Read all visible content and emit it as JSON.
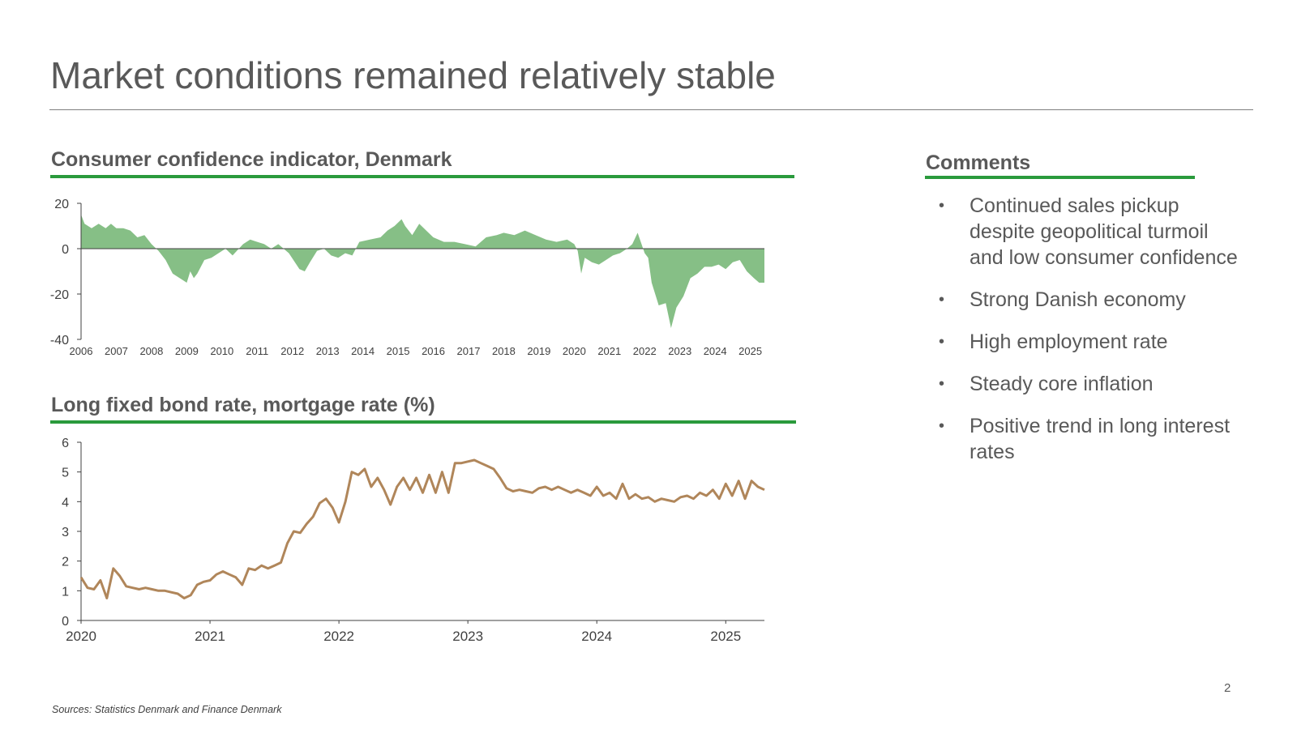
{
  "page": {
    "title": "Market conditions remained relatively stable",
    "page_number": "2",
    "source": "Sources: Statistics Denmark and Finance Denmark"
  },
  "comments": {
    "title": "Comments",
    "bullet_glyph": "•",
    "items": [
      "Continued sales pickup despite geopolitical turmoil and low consumer confidence",
      "Strong Danish economy",
      "High employment rate",
      "Steady core inflation",
      "Positive trend in long interest rates"
    ]
  },
  "colors": {
    "accent_green": "#2a9a3c",
    "area_green": "#86bf86",
    "line_brown": "#b0865a",
    "text_gray": "#595959"
  },
  "chart_data": [
    {
      "type": "area",
      "title": "Consumer confidence indicator, Denmark",
      "xlabel": "",
      "ylabel": "",
      "xlim": [
        2006,
        2025.4
      ],
      "ylim": [
        -40,
        20
      ],
      "y_ticks": [
        20,
        0,
        -20,
        -40
      ],
      "x_ticks": [
        "2006",
        "2007",
        "2008",
        "2009",
        "2010",
        "2011",
        "2012",
        "2013",
        "2014",
        "2015",
        "2016",
        "2017",
        "2018",
        "2019",
        "2020",
        "2021",
        "2022",
        "2023",
        "2024",
        "2025"
      ],
      "grid": false,
      "series": [
        {
          "x": [
            2006.0,
            2006.1,
            2006.3,
            2006.5,
            2006.7,
            2006.85,
            2007.0,
            2007.2,
            2007.4,
            2007.6,
            2007.8,
            2008.0,
            2008.2,
            2008.4,
            2008.6,
            2008.8,
            2009.0,
            2009.1,
            2009.2,
            2009.3,
            2009.5,
            2009.7,
            2009.9,
            2010.1,
            2010.3,
            2010.6,
            2010.8,
            2011.0,
            2011.2,
            2011.4,
            2011.6,
            2011.9,
            2012.2,
            2012.35,
            2012.5,
            2012.7,
            2012.9,
            2013.1,
            2013.3,
            2013.5,
            2013.7,
            2013.9,
            2014.2,
            2014.5,
            2014.7,
            2014.9,
            2015.1,
            2015.2,
            2015.4,
            2015.6,
            2015.8,
            2016.0,
            2016.3,
            2016.6,
            2016.9,
            2017.2,
            2017.5,
            2017.8,
            2018.0,
            2018.3,
            2018.6,
            2018.9,
            2019.2,
            2019.5,
            2019.8,
            2020.0,
            2020.1,
            2020.2,
            2020.3,
            2020.5,
            2020.7,
            2020.9,
            2021.1,
            2021.3,
            2021.5,
            2021.65,
            2021.8,
            2022.0,
            2022.1,
            2022.2,
            2022.4,
            2022.6,
            2022.75,
            2022.9,
            2023.1,
            2023.3,
            2023.5,
            2023.7,
            2023.9,
            2024.1,
            2024.3,
            2024.5,
            2024.7,
            2024.9,
            2025.1,
            2025.25,
            2025.4
          ],
          "y": [
            15,
            11,
            9,
            11,
            9,
            11,
            9,
            9,
            8,
            5,
            6,
            2,
            -1,
            -5,
            -11,
            -13,
            -15,
            -10,
            -13,
            -11,
            -5,
            -4,
            -2,
            0,
            -3,
            2,
            4,
            3,
            2,
            0,
            2,
            -2,
            -9,
            -10,
            -6,
            -1,
            0,
            -3,
            -4,
            -2,
            -3,
            3,
            4,
            5,
            8,
            10,
            13,
            10,
            6,
            11,
            8,
            5,
            3,
            3,
            2,
            1,
            5,
            6,
            7,
            6,
            8,
            6,
            4,
            3,
            4,
            2,
            -1,
            -11,
            -4,
            -6,
            -7,
            -5,
            -3,
            -2,
            0,
            2,
            7,
            -2,
            -4,
            -15,
            -25,
            -24,
            -35,
            -26,
            -21,
            -13,
            -11,
            -8,
            -8,
            -7,
            -9,
            -6,
            -5,
            -10,
            -13,
            -15,
            -15
          ]
        }
      ]
    },
    {
      "type": "line",
      "title": "Long fixed bond rate, mortgage rate (%)",
      "xlabel": "",
      "ylabel": "",
      "xlim": [
        2020,
        2025.3
      ],
      "ylim": [
        0,
        6
      ],
      "y_ticks": [
        6,
        5,
        4,
        3,
        2,
        1,
        0
      ],
      "x_ticks": [
        "2020",
        "2021",
        "2022",
        "2023",
        "2024",
        "2025"
      ],
      "grid": false,
      "series": [
        {
          "x": [
            2020.0,
            2020.05,
            2020.1,
            2020.15,
            2020.2,
            2020.25,
            2020.3,
            2020.35,
            2020.4,
            2020.45,
            2020.5,
            2020.55,
            2020.6,
            2020.65,
            2020.7,
            2020.75,
            2020.8,
            2020.85,
            2020.9,
            2020.95,
            2021.0,
            2021.05,
            2021.1,
            2021.15,
            2021.2,
            2021.25,
            2021.3,
            2021.35,
            2021.4,
            2021.45,
            2021.5,
            2021.55,
            2021.6,
            2021.65,
            2021.7,
            2021.75,
            2021.8,
            2021.85,
            2021.9,
            2021.95,
            2022.0,
            2022.05,
            2022.1,
            2022.15,
            2022.2,
            2022.25,
            2022.3,
            2022.35,
            2022.4,
            2022.45,
            2022.5,
            2022.55,
            2022.6,
            2022.65,
            2022.7,
            2022.75,
            2022.8,
            2022.85,
            2022.9,
            2022.95,
            2023.0,
            2023.05,
            2023.1,
            2023.15,
            2023.2,
            2023.25,
            2023.3,
            2023.35,
            2023.4,
            2023.45,
            2023.5,
            2023.55,
            2023.6,
            2023.65,
            2023.7,
            2023.75,
            2023.8,
            2023.85,
            2023.9,
            2023.95,
            2024.0,
            2024.05,
            2024.1,
            2024.15,
            2024.2,
            2024.25,
            2024.3,
            2024.35,
            2024.4,
            2024.45,
            2024.5,
            2024.55,
            2024.6,
            2024.65,
            2024.7,
            2024.75,
            2024.8,
            2024.85,
            2024.9,
            2024.95,
            2025.0,
            2025.05,
            2025.1,
            2025.15,
            2025.2,
            2025.25,
            2025.3
          ],
          "y": [
            1.45,
            1.1,
            1.05,
            1.35,
            0.75,
            1.75,
            1.5,
            1.15,
            1.1,
            1.05,
            1.1,
            1.05,
            1.0,
            1.0,
            0.95,
            0.9,
            0.75,
            0.85,
            1.2,
            1.3,
            1.35,
            1.55,
            1.65,
            1.55,
            1.45,
            1.2,
            1.75,
            1.7,
            1.85,
            1.75,
            1.85,
            1.95,
            2.6,
            3.0,
            2.95,
            3.25,
            3.5,
            3.95,
            4.1,
            3.8,
            3.3,
            4.0,
            5.0,
            4.9,
            5.1,
            4.5,
            4.8,
            4.4,
            3.9,
            4.5,
            4.8,
            4.4,
            4.8,
            4.3,
            4.9,
            4.3,
            5.0,
            4.3,
            5.3,
            5.3,
            5.35,
            5.4,
            5.3,
            5.2,
            5.1,
            4.8,
            4.45,
            4.35,
            4.4,
            4.35,
            4.3,
            4.45,
            4.5,
            4.4,
            4.5,
            4.4,
            4.3,
            4.4,
            4.3,
            4.2,
            4.5,
            4.2,
            4.3,
            4.1,
            4.6,
            4.1,
            4.25,
            4.1,
            4.15,
            4.0,
            4.1,
            4.05,
            4.0,
            4.15,
            4.2,
            4.1,
            4.3,
            4.2,
            4.4,
            4.1,
            4.6,
            4.2,
            4.7,
            4.1,
            4.7,
            4.5,
            4.4
          ]
        }
      ]
    }
  ]
}
